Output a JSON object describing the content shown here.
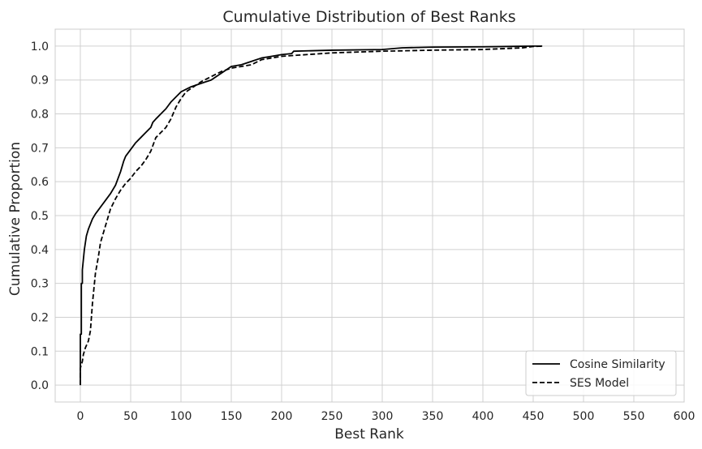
{
  "chart_data": {
    "type": "line",
    "title": "Cumulative Distribution of Best Ranks",
    "xlabel": "Best Rank",
    "ylabel": "Cumulative Proportion",
    "xlim": [
      -25,
      600
    ],
    "ylim": [
      -0.05,
      1.05
    ],
    "xticks": [
      0,
      50,
      100,
      150,
      200,
      250,
      300,
      350,
      400,
      450,
      500,
      550,
      600
    ],
    "yticks": [
      0.0,
      0.1,
      0.2,
      0.3,
      0.4,
      0.5,
      0.6,
      0.7,
      0.8,
      0.9,
      1.0
    ],
    "xtick_labels": [
      "0",
      "50",
      "100",
      "150",
      "200",
      "250",
      "300",
      "350",
      "400",
      "450",
      "500",
      "550",
      "600"
    ],
    "ytick_labels": [
      "0.0",
      "0.1",
      "0.2",
      "0.3",
      "0.4",
      "0.5",
      "0.6",
      "0.7",
      "0.8",
      "0.9",
      "1.0"
    ],
    "grid": true,
    "legend_position": "bottom-right",
    "series": [
      {
        "name": "Cosine Similarity",
        "style": "solid",
        "color": "#000000",
        "x": [
          0,
          0,
          1,
          1,
          2,
          2,
          3,
          4,
          5,
          6,
          8,
          10,
          12,
          15,
          20,
          25,
          30,
          35,
          40,
          43,
          45,
          50,
          55,
          60,
          65,
          70,
          72,
          75,
          80,
          85,
          90,
          95,
          100,
          110,
          120,
          130,
          140,
          150,
          160,
          170,
          180,
          190,
          200,
          210,
          212,
          250,
          300,
          320,
          350,
          400,
          450,
          459
        ],
        "y": [
          0.0,
          0.15,
          0.15,
          0.3,
          0.3,
          0.34,
          0.37,
          0.4,
          0.42,
          0.44,
          0.46,
          0.475,
          0.49,
          0.505,
          0.525,
          0.545,
          0.565,
          0.59,
          0.63,
          0.66,
          0.675,
          0.695,
          0.715,
          0.73,
          0.745,
          0.76,
          0.775,
          0.785,
          0.8,
          0.815,
          0.835,
          0.85,
          0.865,
          0.88,
          0.89,
          0.9,
          0.92,
          0.94,
          0.945,
          0.955,
          0.965,
          0.97,
          0.975,
          0.978,
          0.985,
          0.988,
          0.99,
          0.995,
          0.997,
          0.998,
          1.0,
          1.0
        ]
      },
      {
        "name": "SES Model",
        "style": "dashed",
        "color": "#000000",
        "x": [
          0,
          0,
          2,
          3,
          5,
          8,
          10,
          12,
          14,
          15,
          18,
          20,
          25,
          30,
          35,
          40,
          45,
          50,
          55,
          60,
          65,
          70,
          75,
          80,
          85,
          90,
          95,
          100,
          105,
          110,
          120,
          130,
          140,
          150,
          160,
          170,
          180,
          200,
          250,
          300,
          350,
          400,
          440,
          450,
          459
        ],
        "y": [
          0.0,
          0.05,
          0.07,
          0.09,
          0.11,
          0.13,
          0.16,
          0.24,
          0.3,
          0.33,
          0.38,
          0.42,
          0.47,
          0.52,
          0.55,
          0.575,
          0.595,
          0.61,
          0.63,
          0.645,
          0.665,
          0.69,
          0.73,
          0.745,
          0.76,
          0.785,
          0.82,
          0.845,
          0.865,
          0.875,
          0.895,
          0.91,
          0.925,
          0.935,
          0.94,
          0.945,
          0.96,
          0.97,
          0.98,
          0.985,
          0.988,
          0.99,
          0.995,
          0.999,
          1.0
        ]
      }
    ]
  }
}
